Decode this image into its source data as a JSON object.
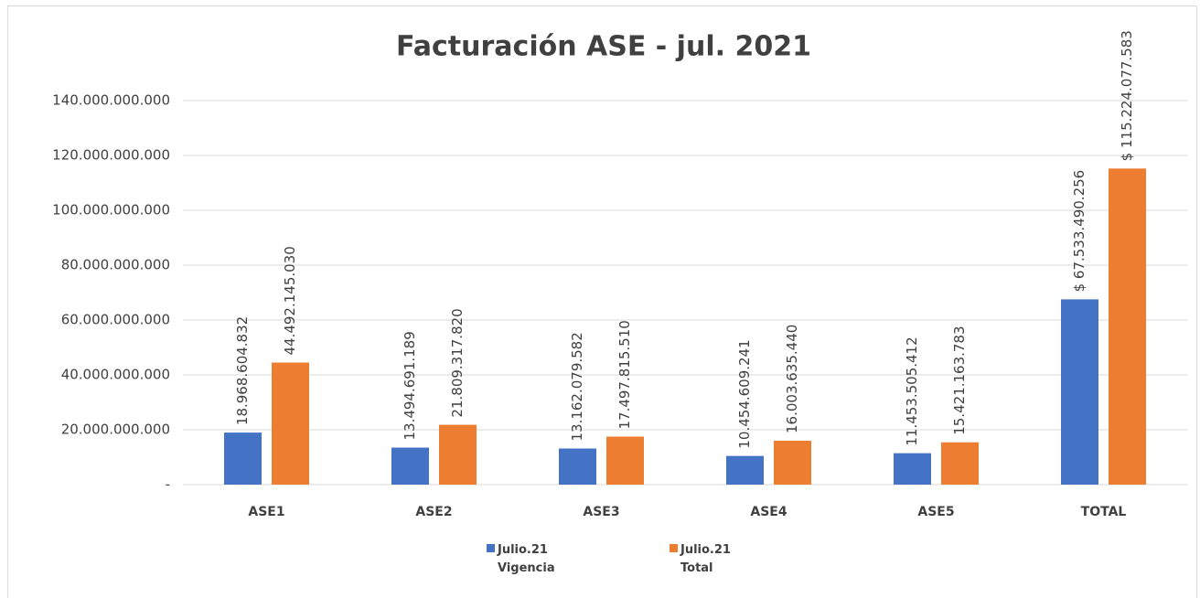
{
  "chart_data": {
    "type": "bar",
    "title": "Facturación ASE - jul. 2021",
    "categories": [
      "ASE1",
      "ASE2",
      "ASE3",
      "ASE4",
      "ASE5",
      "TOTAL"
    ],
    "series": [
      {
        "name": "Julio.21 Vigencia",
        "color": "#4472c4",
        "values": [
          18968604832,
          13494691189,
          13162079582,
          10454609241,
          11453505412,
          67533490256
        ],
        "value_labels": [
          "18.968.604.832",
          "13.494.691.189",
          "13.162.079.582",
          "10.454.609.241",
          "11.453.505.412",
          "$ 67.533.490.256"
        ]
      },
      {
        "name": "Julio.21 Total",
        "color": "#ed7d31",
        "values": [
          44492145030,
          21809317820,
          17497815510,
          16003635440,
          15421163783,
          115224077583
        ],
        "value_labels": [
          "44.492.145.030",
          "21.809.317.820",
          "17.497.815.510",
          "16.003.635.440",
          "15.421.163.783",
          "$ 115.224.077.583"
        ]
      }
    ],
    "ylim": [
      0,
      140000000000
    ],
    "yticks": [
      {
        "value": 0,
        "label": "-"
      },
      {
        "value": 20000000000,
        "label": "20.000.000.000"
      },
      {
        "value": 40000000000,
        "label": "40.000.000.000"
      },
      {
        "value": 60000000000,
        "label": "60.000.000.000"
      },
      {
        "value": 80000000000,
        "label": "80.000.000.000"
      },
      {
        "value": 100000000000,
        "label": "100.000.000.000"
      },
      {
        "value": 120000000000,
        "label": "120.000.000.000"
      },
      {
        "value": 140000000000,
        "label": "140.000.000.000"
      }
    ],
    "grid": true,
    "legend": "bottom"
  }
}
